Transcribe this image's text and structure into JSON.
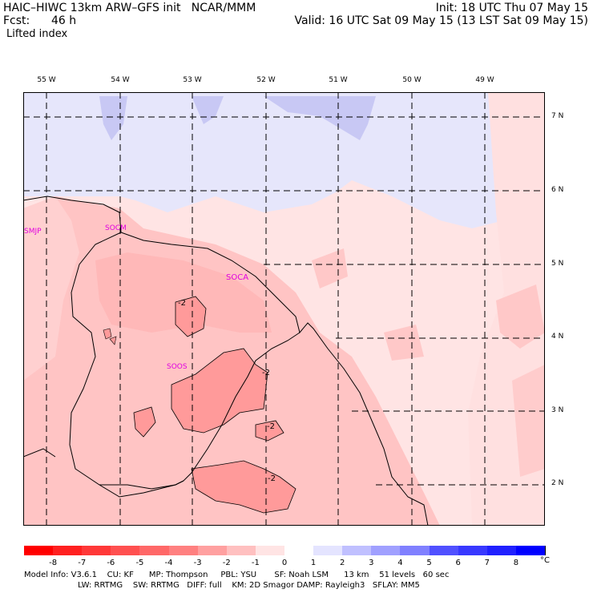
{
  "header": {
    "model": "HAIC–HIWC 13km ARW–GFS init   NCAR/MMM",
    "fcst_label": "Fcst:",
    "fcst_value": "46 h",
    "field": "Lifted index",
    "init": "Init: 18 UTC Thu 07 May 15",
    "valid": "Valid: 16 UTC Sat 09 May 15 (13 LST Sat 09 May 15)"
  },
  "map": {
    "lon_labels": [
      "55 W",
      "54 W",
      "53 W",
      "52 W",
      "51 W",
      "50 W",
      "49 W"
    ],
    "lat_labels": [
      "7 N",
      "6 N",
      "5 N",
      "4 N",
      "3 N",
      "2 N"
    ],
    "stations": [
      "SMJP",
      "SOCM",
      "SOCA",
      "SOOS"
    ],
    "contour_labels": [
      "-2",
      "-2",
      "-2",
      "-2"
    ]
  },
  "colorbar": {
    "labels": [
      "-8",
      "-7",
      "-6",
      "-5",
      "-4",
      "-3",
      "-2",
      "-1",
      "0",
      "1",
      "2",
      "3",
      "4",
      "5",
      "6",
      "7",
      "8"
    ],
    "unit": "°C",
    "colors": [
      "#ff0000",
      "#ff2020",
      "#ff3838",
      "#ff5050",
      "#ff6868",
      "#ff8080",
      "#ffa0a0",
      "#ffc0c0",
      "#ffe4e4",
      "#ffffff",
      "#e4e4ff",
      "#c0c0ff",
      "#a0a0ff",
      "#8080ff",
      "#5050ff",
      "#3838ff",
      "#2020ff",
      "#0000ff"
    ]
  },
  "footer": {
    "line1": "Model Info: V3.6.1    CU: KF      MP: Thompson     PBL: YSU       SF: Noah LSM      13 km    51 levels   60 sec",
    "line2": "LW: RRTMG    SW: RRTMG   DIFF: full    KM: 2D Smagor DAMP: Rayleigh3   SFLAY: MM5"
  }
}
